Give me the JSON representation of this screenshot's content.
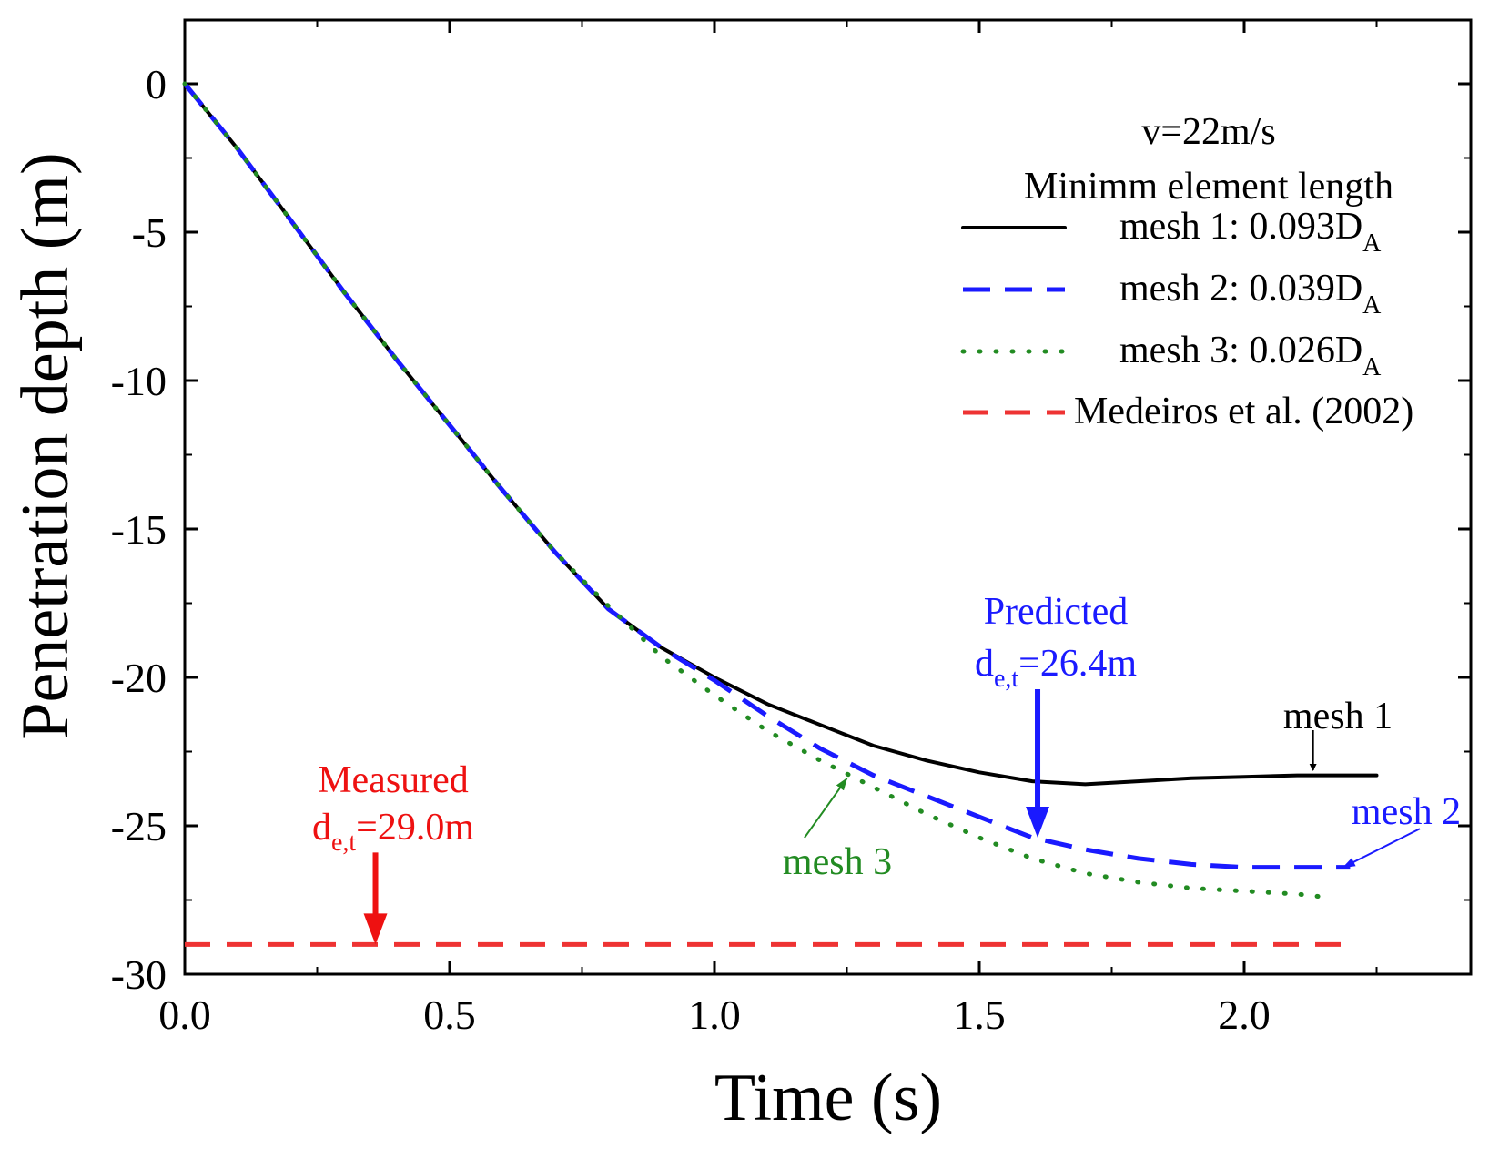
{
  "chart_data": {
    "type": "line",
    "title": "",
    "xlabel": "Time (s)",
    "ylabel": "Penetration depth (m)",
    "xlim": [
      0,
      2.4
    ],
    "ylim": [
      -30,
      2
    ],
    "xticks": [
      0.0,
      0.5,
      1.0,
      1.5,
      2.0
    ],
    "xtick_labels": [
      "0.0",
      "0.5",
      "1.0",
      "1.5",
      "2.0"
    ],
    "yticks": [
      0,
      -5,
      -10,
      -15,
      -20,
      -25,
      -30
    ],
    "ytick_labels": [
      "0",
      "-5",
      "-10",
      "-15",
      "-20",
      "-25",
      "-30"
    ],
    "legend": {
      "title_line1": "v=22m/s",
      "title_line2": "Minimm element length",
      "position": "top-right"
    },
    "series": [
      {
        "name": "mesh 1",
        "legend_text": "mesh 1: 0.093D",
        "legend_sub": "A",
        "color": "#000000",
        "style": "solid",
        "x": [
          0,
          0.1,
          0.2,
          0.3,
          0.4,
          0.5,
          0.6,
          0.7,
          0.8,
          0.9,
          1.0,
          1.1,
          1.2,
          1.3,
          1.4,
          1.5,
          1.6,
          1.7,
          1.8,
          1.9,
          2.0,
          2.1,
          2.25
        ],
        "y": [
          0,
          -2.2,
          -4.6,
          -7.0,
          -9.3,
          -11.5,
          -13.7,
          -15.8,
          -17.7,
          -19.0,
          -20.0,
          -20.9,
          -21.6,
          -22.3,
          -22.8,
          -23.2,
          -23.5,
          -23.6,
          -23.5,
          -23.4,
          -23.35,
          -23.3,
          -23.3
        ]
      },
      {
        "name": "mesh 2",
        "legend_text": "mesh 2: 0.039D",
        "legend_sub": "A",
        "color": "#1a1aff",
        "style": "dashed",
        "x": [
          0,
          0.1,
          0.2,
          0.3,
          0.4,
          0.5,
          0.6,
          0.7,
          0.8,
          0.9,
          1.0,
          1.1,
          1.2,
          1.3,
          1.4,
          1.5,
          1.6,
          1.7,
          1.8,
          1.9,
          2.0,
          2.1,
          2.2
        ],
        "y": [
          0,
          -2.2,
          -4.6,
          -7.0,
          -9.3,
          -11.5,
          -13.7,
          -15.8,
          -17.7,
          -19.0,
          -20.1,
          -21.3,
          -22.4,
          -23.3,
          -24.0,
          -24.7,
          -25.4,
          -25.8,
          -26.1,
          -26.3,
          -26.4,
          -26.4,
          -26.4
        ]
      },
      {
        "name": "mesh 3",
        "legend_text": "mesh 3: 0.026D",
        "legend_sub": "A",
        "color": "#228b22",
        "style": "dotted",
        "x": [
          0,
          0.1,
          0.2,
          0.3,
          0.4,
          0.5,
          0.6,
          0.7,
          0.8,
          0.9,
          1.0,
          1.1,
          1.2,
          1.3,
          1.4,
          1.5,
          1.6,
          1.7,
          1.8,
          1.9,
          2.0,
          2.1,
          2.15
        ],
        "y": [
          0,
          -2.2,
          -4.6,
          -7.0,
          -9.3,
          -11.5,
          -13.7,
          -15.8,
          -17.6,
          -19.3,
          -20.6,
          -21.8,
          -22.8,
          -23.7,
          -24.6,
          -25.4,
          -26.1,
          -26.6,
          -26.9,
          -27.1,
          -27.2,
          -27.3,
          -27.4
        ]
      },
      {
        "name": "Medeiros et al. (2002)",
        "legend_text": "Medeiros et al. (2002)",
        "legend_sub": "",
        "color": "#ee3333",
        "style": "dashed",
        "x": [
          0,
          2.2
        ],
        "y": [
          -29.0,
          -29.0
        ]
      }
    ],
    "annotations": [
      {
        "id": "predicted",
        "line1": "Predicted",
        "line2_main": "d",
        "line2_sub": "e,t",
        "line2_rest": "=26.4m",
        "color": "#1a1aff",
        "arrow_x": 1.61,
        "arrow_from_y": -20.4,
        "arrow_to_y": -25.4
      },
      {
        "id": "measured",
        "line1": "Measured",
        "line2_main": "d",
        "line2_sub": "e,t",
        "line2_rest": "=29.0m",
        "color": "#ee1111",
        "arrow_x": 0.36,
        "arrow_from_y": -25.9,
        "arrow_to_y": -29.0
      },
      {
        "id": "mesh1-label",
        "text": "mesh 1",
        "color": "#000000",
        "arrow_x": 2.13,
        "arrow_from_y": -21.8,
        "arrow_to_y": -23.25
      },
      {
        "id": "mesh2-label",
        "text": "mesh 2",
        "color": "#1a1aff",
        "arrow_from_x": 2.28,
        "arrow_from_y": -25.1,
        "arrow_to_x": 2.18,
        "arrow_to_y": -26.4
      },
      {
        "id": "mesh3-label",
        "text": "mesh 3",
        "color": "#228b22",
        "arrow_from_x": 1.17,
        "arrow_from_y": -25.4,
        "arrow_to_x": 1.25,
        "arrow_to_y": -23.4
      }
    ]
  }
}
